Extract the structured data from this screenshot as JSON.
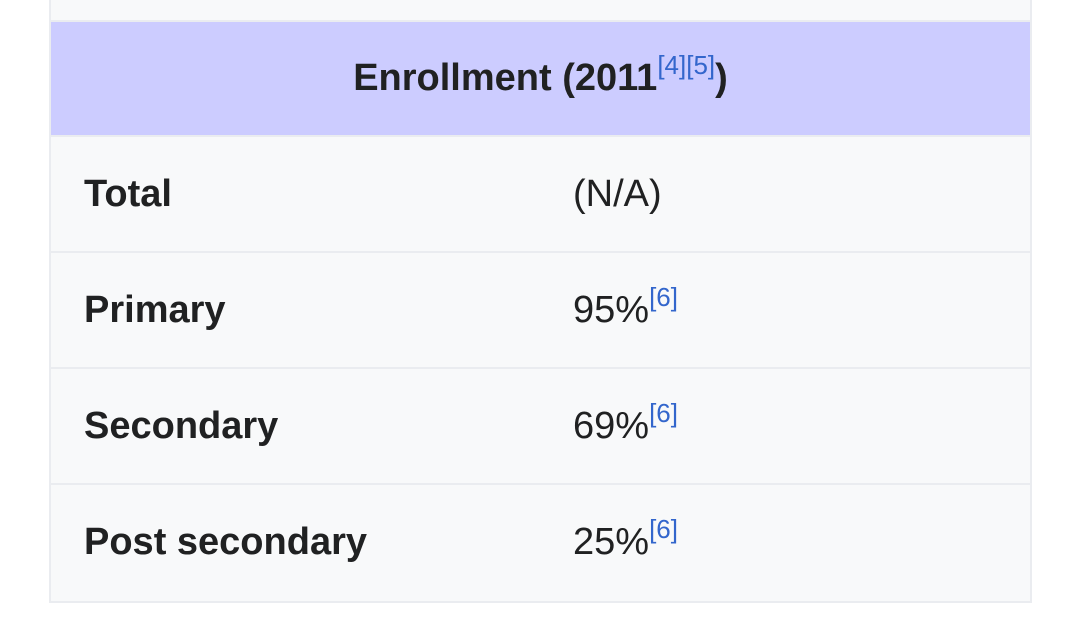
{
  "infobox": {
    "header": {
      "text": "Enrollment (2011",
      "refs": [
        "[4]",
        "[5]"
      ],
      "close": ")"
    },
    "rows": [
      {
        "label": "Total",
        "value": "(N/A)"
      },
      {
        "label": "Primary",
        "value": "95%",
        "ref": "[6]"
      },
      {
        "label": "Secondary",
        "value": "69%",
        "ref": "[6]"
      },
      {
        "label": "Post secondary",
        "value": "25%",
        "ref": "[6]"
      }
    ]
  }
}
